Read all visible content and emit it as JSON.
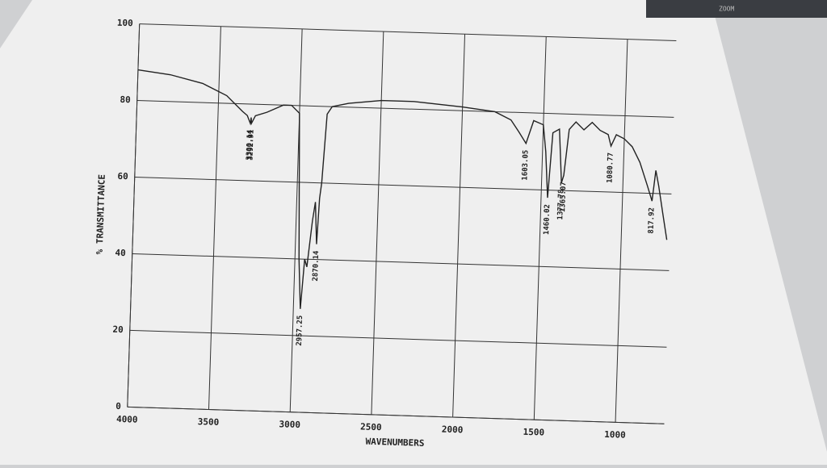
{
  "viewer": {
    "zoom": "ZOOM"
  },
  "chart_data": {
    "type": "line",
    "xlabel": "WAVENUMBERS",
    "ylabel": "% TRANSMITTANCE",
    "xlim": [
      4000,
      700
    ],
    "ylim": [
      0,
      100
    ],
    "xticks": [
      4000,
      3500,
      3000,
      2500,
      2000,
      1500,
      1000
    ],
    "yticks": [
      0,
      20,
      40,
      60,
      80,
      100
    ],
    "grid": true,
    "color": "#222222",
    "x": [
      4000,
      3800,
      3600,
      3450,
      3350,
      3320,
      3300.14,
      3296,
      3292.91,
      3270,
      3200,
      3100,
      3050,
      3000,
      2975,
      2957.25,
      2940,
      2925,
      2900,
      2885,
      2870.14,
      2860,
      2850,
      2830,
      2800,
      2700,
      2500,
      2300,
      2000,
      1800,
      1700,
      1650,
      1603.05,
      1560,
      1500,
      1480,
      1460.02,
      1440,
      1400,
      1377.78,
      1365.07,
      1340,
      1300,
      1250,
      1200,
      1150,
      1100,
      1080.77,
      1050,
      1000,
      950,
      900,
      850,
      817.92,
      800,
      780,
      750,
      720
    ],
    "values": [
      88,
      87,
      85,
      82,
      78,
      77,
      75,
      76.5,
      75,
      77,
      78,
      80,
      80,
      78,
      40,
      27,
      40,
      38,
      50,
      55,
      44,
      56,
      60,
      78,
      80,
      81,
      82,
      82,
      81,
      80,
      78,
      75,
      72,
      78,
      77,
      70,
      58,
      75,
      76,
      62,
      64,
      76,
      78,
      76,
      78,
      76,
      75,
      72,
      75,
      74,
      72,
      68,
      62,
      58,
      66,
      62,
      55,
      48
    ],
    "annotations": [
      3300.14,
      3292.91,
      2957.25,
      2870.14,
      1603.05,
      1460.02,
      1377.78,
      1365.07,
      1080.77,
      817.92
    ]
  }
}
